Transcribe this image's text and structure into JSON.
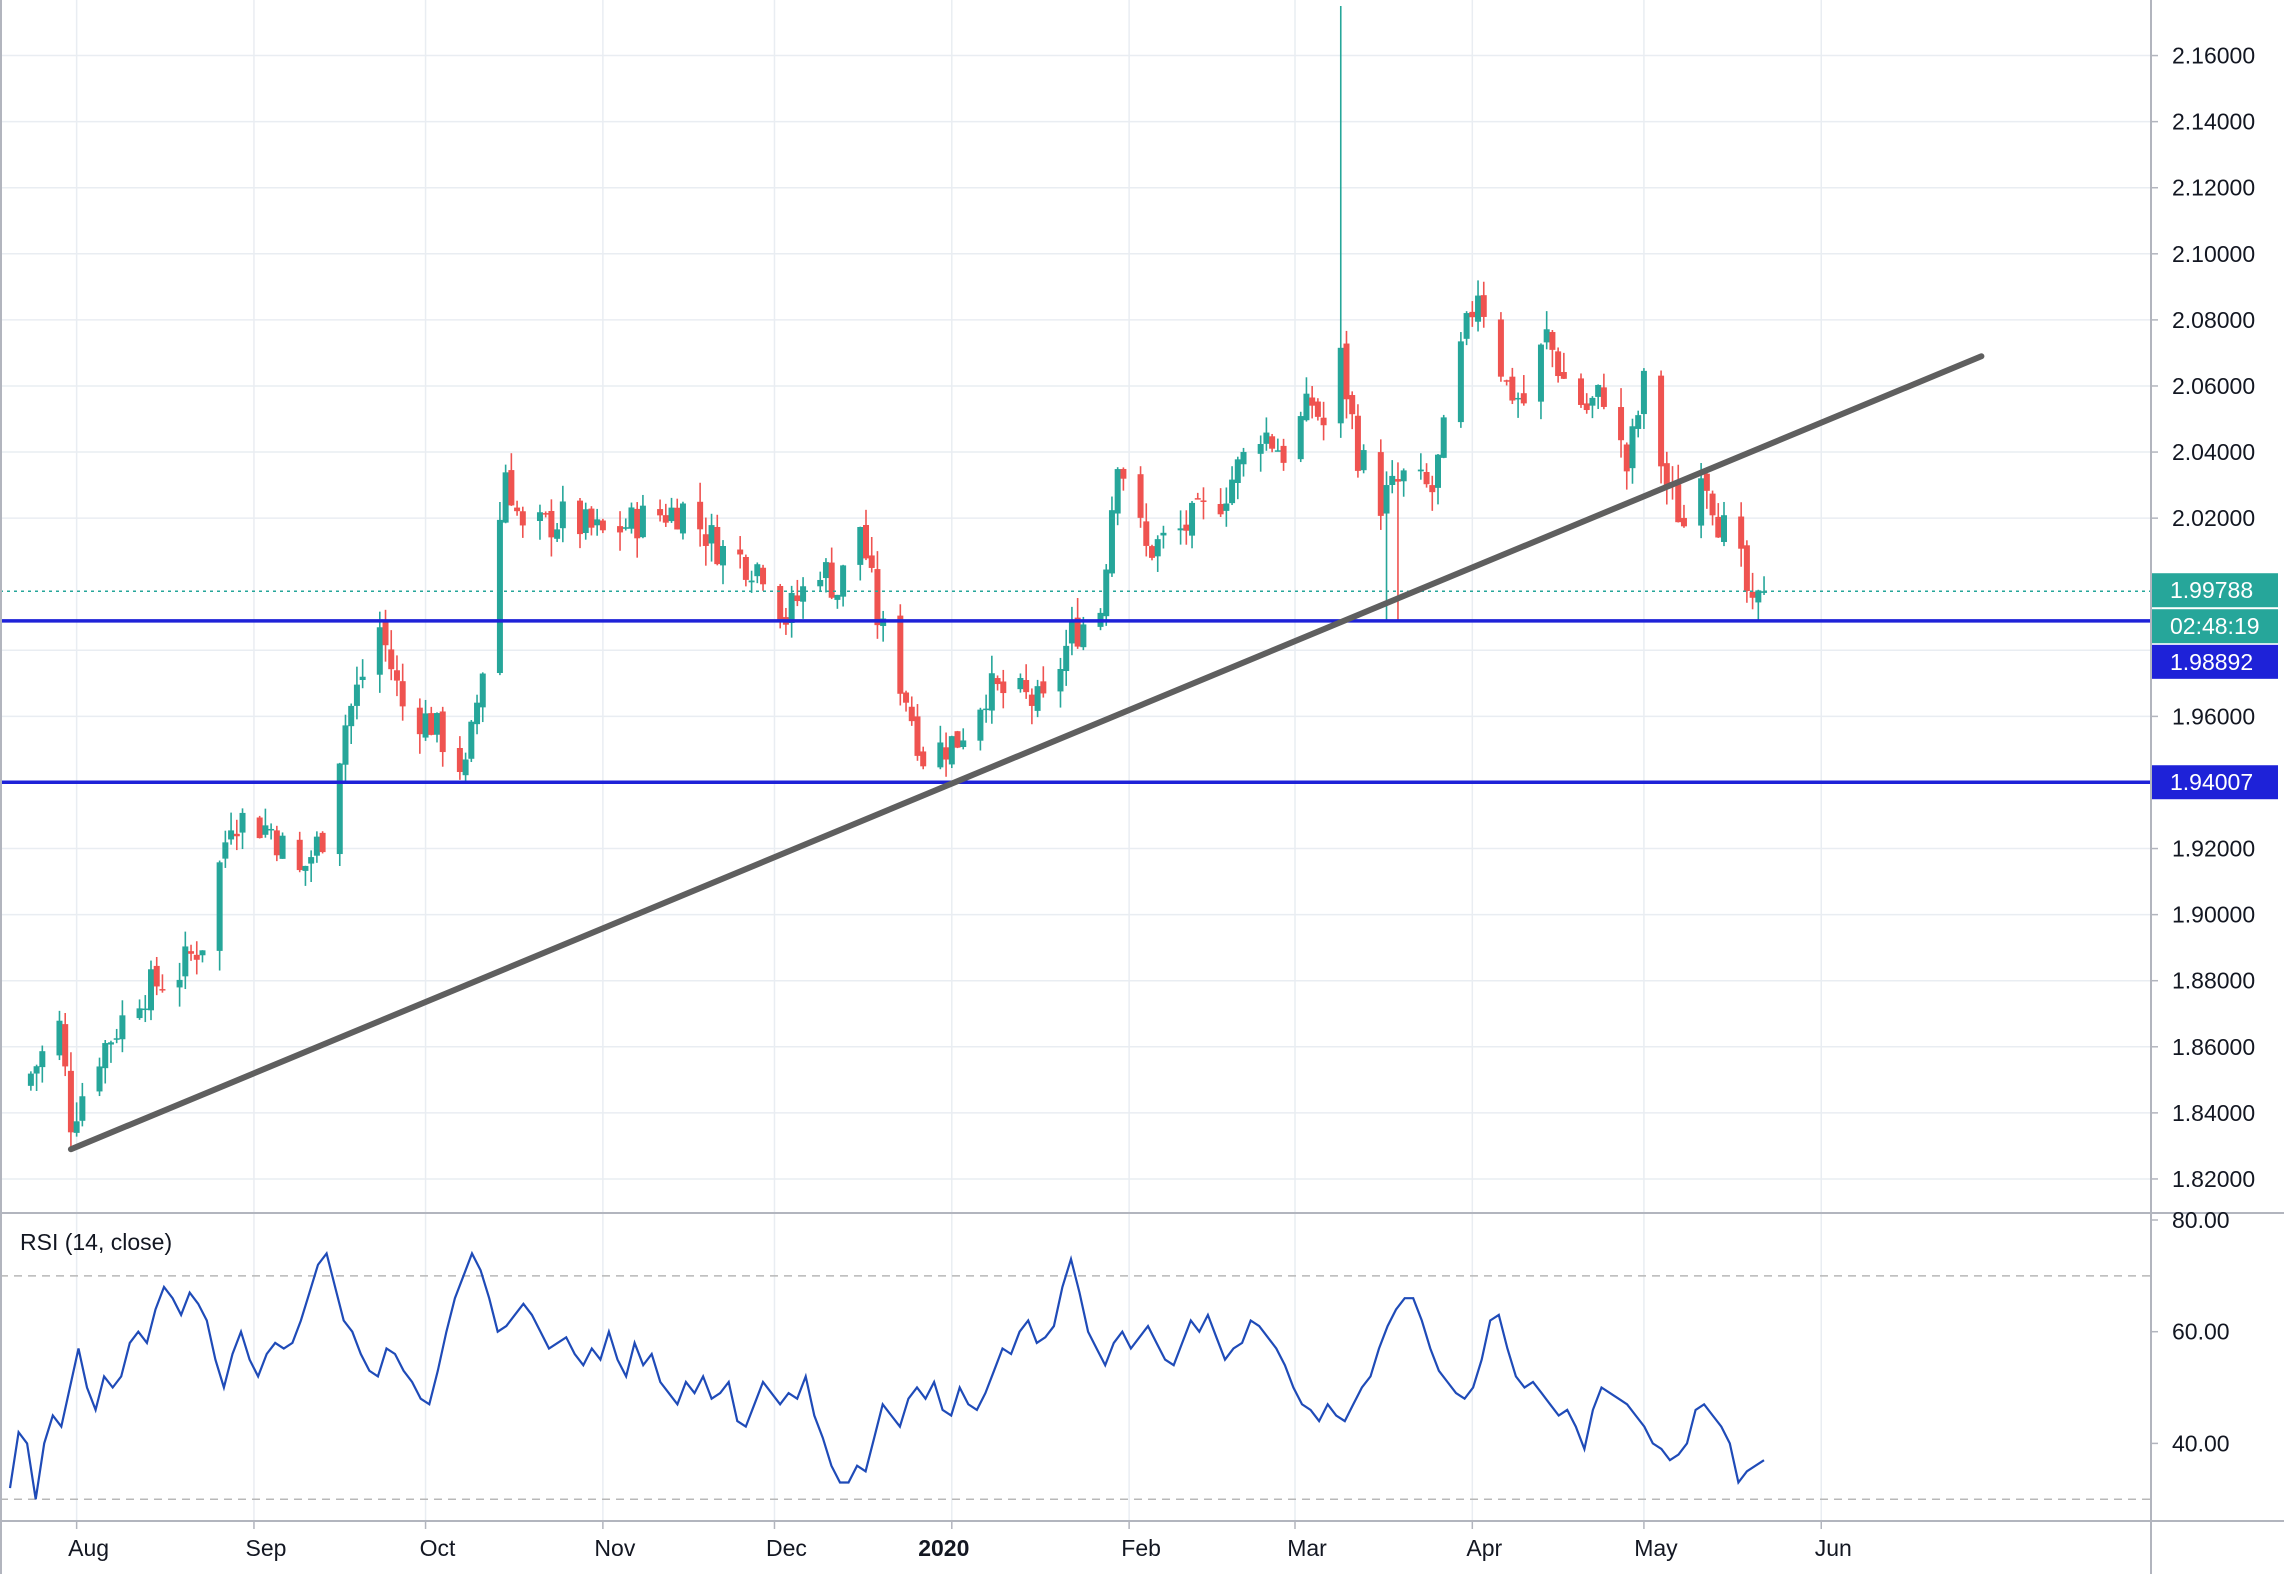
{
  "colors": {
    "up": "#26a69a",
    "down": "#ef5350",
    "grid": "#e9edf2",
    "support_line": "#1e22d8",
    "trendline": "#5f5f5f",
    "rsi_line": "#1f4bb8",
    "rsi_band": "#b8b8b8",
    "axis_text": "#131722",
    "last_price_bg": "#26a69a",
    "current_price_line": "#26a69a"
  },
  "chart_data": [
    {
      "type": "candlestick",
      "title": "",
      "x_axis": {
        "tick_labels": [
          "Aug",
          "Sep",
          "Oct",
          "Nov",
          "Dec",
          "2020",
          "Feb",
          "Mar",
          "Apr",
          "May",
          "Jun"
        ],
        "bold_labels": [
          "2020"
        ]
      },
      "y_axis": {
        "range": [
          1.81,
          2.175
        ],
        "tick_labels": [
          "2.16000",
          "2.14000",
          "2.12000",
          "2.10000",
          "2.08000",
          "2.06000",
          "2.04000",
          "2.02000",
          "1.96000",
          "1.92000",
          "1.90000",
          "1.88000",
          "1.86000",
          "1.84000",
          "1.82000"
        ],
        "tick_values": [
          2.16,
          2.14,
          2.12,
          2.1,
          2.08,
          2.06,
          2.04,
          2.02,
          1.96,
          1.92,
          1.9,
          1.88,
          1.86,
          1.84,
          1.82
        ],
        "grid": true
      },
      "price_labels": {
        "last_price": "1.99788",
        "countdown": "02:48:19",
        "level_1": "1.98892",
        "level_2": "1.94007"
      },
      "horizontal_levels": [
        1.98892,
        1.94007
      ],
      "current_price": 1.99788,
      "trendline": {
        "start": {
          "date": "2019-07-31",
          "value": 1.829
        },
        "end": {
          "date": "2020-06-29",
          "value": 2.069
        }
      },
      "ohlc_daily": {
        "start_date": "2019-07-24",
        "end_date": "2020-05-22",
        "note_anchor_closes": [
          [
            "2019-07-24",
            1.852
          ],
          [
            "2019-07-29",
            1.866
          ],
          [
            "2019-07-31",
            1.838
          ],
          [
            "2019-08-05",
            1.858
          ],
          [
            "2019-08-12",
            1.876
          ],
          [
            "2019-08-19",
            1.883
          ],
          [
            "2019-08-23",
            1.892
          ],
          [
            "2019-08-28",
            1.93
          ],
          [
            "2019-09-04",
            1.926
          ],
          [
            "2019-09-09",
            1.912
          ],
          [
            "2019-09-13",
            1.924
          ],
          [
            "2019-09-17",
            1.958
          ],
          [
            "2019-09-23",
            1.987
          ],
          [
            "2019-09-27",
            1.963
          ],
          [
            "2019-10-02",
            1.958
          ],
          [
            "2019-10-08",
            1.943
          ],
          [
            "2019-10-11",
            1.975
          ],
          [
            "2019-10-15",
            2.035
          ],
          [
            "2019-10-18",
            2.015
          ],
          [
            "2019-10-25",
            2.02
          ],
          [
            "2019-11-01",
            2.015
          ],
          [
            "2019-11-08",
            2.02
          ],
          [
            "2019-11-15",
            2.023
          ],
          [
            "2019-11-22",
            2.01
          ],
          [
            "2019-11-29",
            2.005
          ],
          [
            "2019-12-03",
            1.99
          ],
          [
            "2019-12-09",
            2.006
          ],
          [
            "2019-12-12",
            1.998
          ],
          [
            "2019-12-16",
            2.018
          ],
          [
            "2019-12-19",
            1.99
          ],
          [
            "2019-12-24",
            1.966
          ],
          [
            "2019-12-27",
            1.948
          ],
          [
            "2020-01-02",
            1.953
          ],
          [
            "2020-01-07",
            1.968
          ],
          [
            "2020-01-13",
            1.966
          ],
          [
            "2020-01-17",
            1.963
          ],
          [
            "2020-01-22",
            1.985
          ],
          [
            "2020-01-27",
            1.993
          ],
          [
            "2020-01-30",
            2.04
          ],
          [
            "2020-02-04",
            2.01
          ],
          [
            "2020-02-10",
            2.016
          ],
          [
            "2020-02-17",
            2.026
          ],
          [
            "2020-02-24",
            2.047
          ],
          [
            "2020-02-28",
            2.04
          ],
          [
            "2020-03-04",
            2.055
          ],
          [
            "2020-03-06",
            2.048
          ],
          [
            "2020-03-09",
            2.068
          ],
          [
            "2020-03-12",
            2.04
          ],
          [
            "2020-03-16",
            2.025
          ],
          [
            "2020-03-20",
            2.032
          ],
          [
            "2020-03-25",
            2.028
          ],
          [
            "2020-03-30",
            2.07
          ],
          [
            "2020-04-02",
            2.09
          ],
          [
            "2020-04-07",
            2.06
          ],
          [
            "2020-04-10",
            2.055
          ],
          [
            "2020-04-14",
            2.075
          ],
          [
            "2020-04-17",
            2.062
          ],
          [
            "2020-04-21",
            2.053
          ],
          [
            "2020-04-24",
            2.058
          ],
          [
            "2020-04-28",
            2.035
          ],
          [
            "2020-05-01",
            2.06
          ],
          [
            "2020-05-05",
            2.03
          ],
          [
            "2020-05-08",
            2.018
          ],
          [
            "2020-05-11",
            2.038
          ],
          [
            "2020-05-14",
            2.02
          ],
          [
            "2020-05-18",
            2.005
          ],
          [
            "2020-05-20",
            1.99
          ],
          [
            "2020-05-22",
            1.99788
          ]
        ]
      }
    },
    {
      "type": "line",
      "title": "RSI (14, close)",
      "y_axis": {
        "range": [
          27,
          80
        ],
        "tick_labels": [
          "80.00",
          "60.00",
          "40.00"
        ],
        "tick_values": [
          80,
          60,
          40
        ]
      },
      "bands": [
        70,
        30
      ],
      "series": [
        {
          "values": [
            32,
            42,
            40,
            30,
            40,
            45,
            43,
            50,
            57,
            50,
            46,
            52,
            50,
            52,
            58,
            60,
            58,
            64,
            68,
            66,
            63,
            67,
            65,
            62,
            55,
            50,
            56,
            60,
            55,
            52,
            56,
            58,
            57,
            58,
            62,
            67,
            72,
            74,
            68,
            62,
            60,
            56,
            53,
            52,
            57,
            56,
            53,
            51,
            48,
            47,
            53,
            60,
            66,
            70,
            74,
            71,
            66,
            60,
            61,
            63,
            65,
            63,
            60,
            57,
            58,
            59,
            56,
            54,
            57,
            55,
            60,
            55,
            52,
            58,
            54,
            56,
            51,
            49,
            47,
            51,
            49,
            52,
            48,
            49,
            51,
            44,
            43,
            47,
            51,
            49,
            47,
            49,
            48,
            52,
            45,
            41,
            36,
            33,
            33,
            36,
            35,
            41,
            47,
            45,
            43,
            48,
            50,
            48,
            51,
            46,
            45,
            50,
            47,
            46,
            49,
            53,
            57,
            56,
            60,
            62,
            58,
            59,
            61,
            68,
            73,
            67,
            60,
            57,
            54,
            58,
            60,
            57,
            59,
            61,
            58,
            55,
            54,
            58,
            62,
            60,
            63,
            59,
            55,
            57,
            58,
            62,
            61,
            59,
            57,
            54,
            50,
            47,
            46,
            44,
            47,
            45,
            44,
            47,
            50,
            52,
            57,
            61,
            64,
            66,
            66,
            62,
            57,
            53,
            51,
            49,
            48,
            50,
            55,
            62,
            63,
            57,
            52,
            50,
            51,
            49,
            47,
            45,
            46,
            43,
            39,
            46,
            50,
            49,
            48,
            47,
            45,
            43,
            40,
            39,
            37,
            38,
            40,
            46,
            47,
            45,
            43,
            40,
            33,
            35,
            36,
            37
          ]
        }
      ]
    }
  ]
}
